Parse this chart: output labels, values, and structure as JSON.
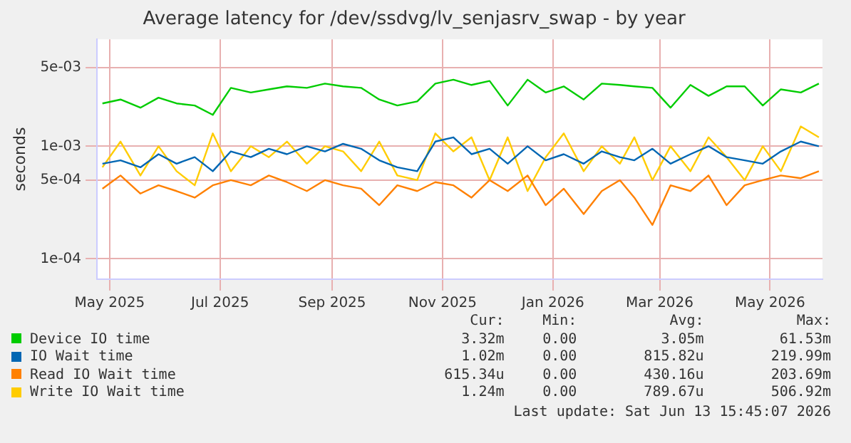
{
  "chart_data": {
    "type": "line",
    "title": "Average latency for /dev/ssdvg/lv_senjasrv_swap - by year",
    "ylabel": "seconds",
    "log": true,
    "grid": true,
    "legend": "bottom",
    "marker": "none",
    "line_style": "solid",
    "x": [
      "2025-05-11",
      "2025-05-21",
      "2025-06-01",
      "2025-06-11",
      "2025-06-21",
      "2025-07-01",
      "2025-07-11",
      "2025-07-21",
      "2025-08-01",
      "2025-08-11",
      "2025-08-21",
      "2025-09-01",
      "2025-09-11",
      "2025-09-21",
      "2025-10-01",
      "2025-10-11",
      "2025-10-21",
      "2025-11-01",
      "2025-11-11",
      "2025-11-21",
      "2025-12-01",
      "2025-12-11",
      "2025-12-21",
      "2026-01-01",
      "2026-01-11",
      "2026-01-21",
      "2026-02-01",
      "2026-02-11",
      "2026-02-21",
      "2026-03-01",
      "2026-03-11",
      "2026-03-21",
      "2026-04-01",
      "2026-04-11",
      "2026-04-21",
      "2026-05-01",
      "2026-05-11",
      "2026-05-21",
      "2026-06-01",
      "2026-06-11"
    ],
    "xlim": [
      "2025-05-08",
      "2026-06-13"
    ],
    "xticks": [
      {
        "value": "2025-05-15",
        "label": "May 2025"
      },
      {
        "value": "2025-07-15",
        "label": "Jul 2025"
      },
      {
        "value": "2025-09-15",
        "label": "Sep 2025"
      },
      {
        "value": "2025-11-15",
        "label": "Nov 2025"
      },
      {
        "value": "2026-01-15",
        "label": "Jan 2026"
      },
      {
        "value": "2026-03-15",
        "label": "Mar 2026"
      },
      {
        "value": "2026-05-15",
        "label": "May 2026"
      }
    ],
    "ylim": [
      6.6e-05,
      0.0089
    ],
    "yticks": [
      {
        "value": 0.0001,
        "label": "1e-04"
      },
      {
        "value": 0.0005,
        "label": "5e-04"
      },
      {
        "value": 0.001,
        "label": "1e-03"
      },
      {
        "value": 0.005,
        "label": "5e-03"
      }
    ],
    "series": [
      {
        "name": "Device IO time",
        "color": "#00cc00",
        "values": [
          0.0024,
          0.0026,
          0.0022,
          0.0027,
          0.0024,
          0.0023,
          0.0019,
          0.0033,
          0.003,
          0.0032,
          0.0034,
          0.0033,
          0.0036,
          0.0034,
          0.0033,
          0.0026,
          0.0023,
          0.0025,
          0.0036,
          0.0039,
          0.0035,
          0.0038,
          0.0023,
          0.0039,
          0.003,
          0.0034,
          0.0026,
          0.0036,
          0.0035,
          0.0034,
          0.0033,
          0.0022,
          0.0035,
          0.0028,
          0.0034,
          0.0034,
          0.0023,
          0.0032,
          0.003,
          0.0036
        ]
      },
      {
        "name": "IO Wait time",
        "color": "#0066b3",
        "values": [
          0.0007,
          0.00075,
          0.00065,
          0.00085,
          0.0007,
          0.0008,
          0.0006,
          0.0009,
          0.0008,
          0.00095,
          0.00085,
          0.001,
          0.0009,
          0.00105,
          0.00095,
          0.00075,
          0.00065,
          0.0006,
          0.0011,
          0.0012,
          0.00085,
          0.00095,
          0.0007,
          0.001,
          0.00075,
          0.00085,
          0.0007,
          0.0009,
          0.0008,
          0.00075,
          0.00095,
          0.0007,
          0.00085,
          0.001,
          0.0008,
          0.00075,
          0.0007,
          0.0009,
          0.0011,
          0.001
        ]
      },
      {
        "name": "Read IO Wait time",
        "color": "#ff8000",
        "values": [
          0.00042,
          0.00055,
          0.00038,
          0.00045,
          0.0004,
          0.00035,
          0.00045,
          0.0005,
          0.00045,
          0.00055,
          0.00048,
          0.0004,
          0.0005,
          0.00045,
          0.00042,
          0.0003,
          0.00045,
          0.0004,
          0.00048,
          0.00045,
          0.00035,
          0.0005,
          0.0004,
          0.00055,
          0.0003,
          0.00042,
          0.00025,
          0.0004,
          0.0005,
          0.00035,
          0.0002,
          0.00045,
          0.0004,
          0.00055,
          0.0003,
          0.00045,
          0.0005,
          0.00055,
          0.00052,
          0.0006
        ]
      },
      {
        "name": "Write IO Wait time",
        "color": "#ffcc00",
        "values": [
          0.00065,
          0.0011,
          0.00055,
          0.001,
          0.0006,
          0.00045,
          0.0013,
          0.0006,
          0.001,
          0.0008,
          0.0011,
          0.0007,
          0.001,
          0.0009,
          0.0006,
          0.0011,
          0.00055,
          0.0005,
          0.0013,
          0.0009,
          0.0012,
          0.0005,
          0.0012,
          0.0004,
          0.0008,
          0.0013,
          0.0006,
          0.001,
          0.0007,
          0.0012,
          0.0005,
          0.001,
          0.0006,
          0.0012,
          0.0008,
          0.0005,
          0.001,
          0.0006,
          0.0015,
          0.0012
        ]
      }
    ],
    "annotations": [
      "Cur:",
      "Min:",
      "Avg:",
      "Max:",
      "3.32m",
      "0.00",
      "3.05m",
      "61.53m",
      "1.02m",
      "0.00",
      "815.82u",
      "219.99m",
      "615.34u",
      "0.00",
      "430.16u",
      "203.69m",
      "1.24m",
      "0.00",
      "789.67u",
      "506.92m",
      "Last update: Sat Jun 13 15:45:07 2026"
    ]
  }
}
